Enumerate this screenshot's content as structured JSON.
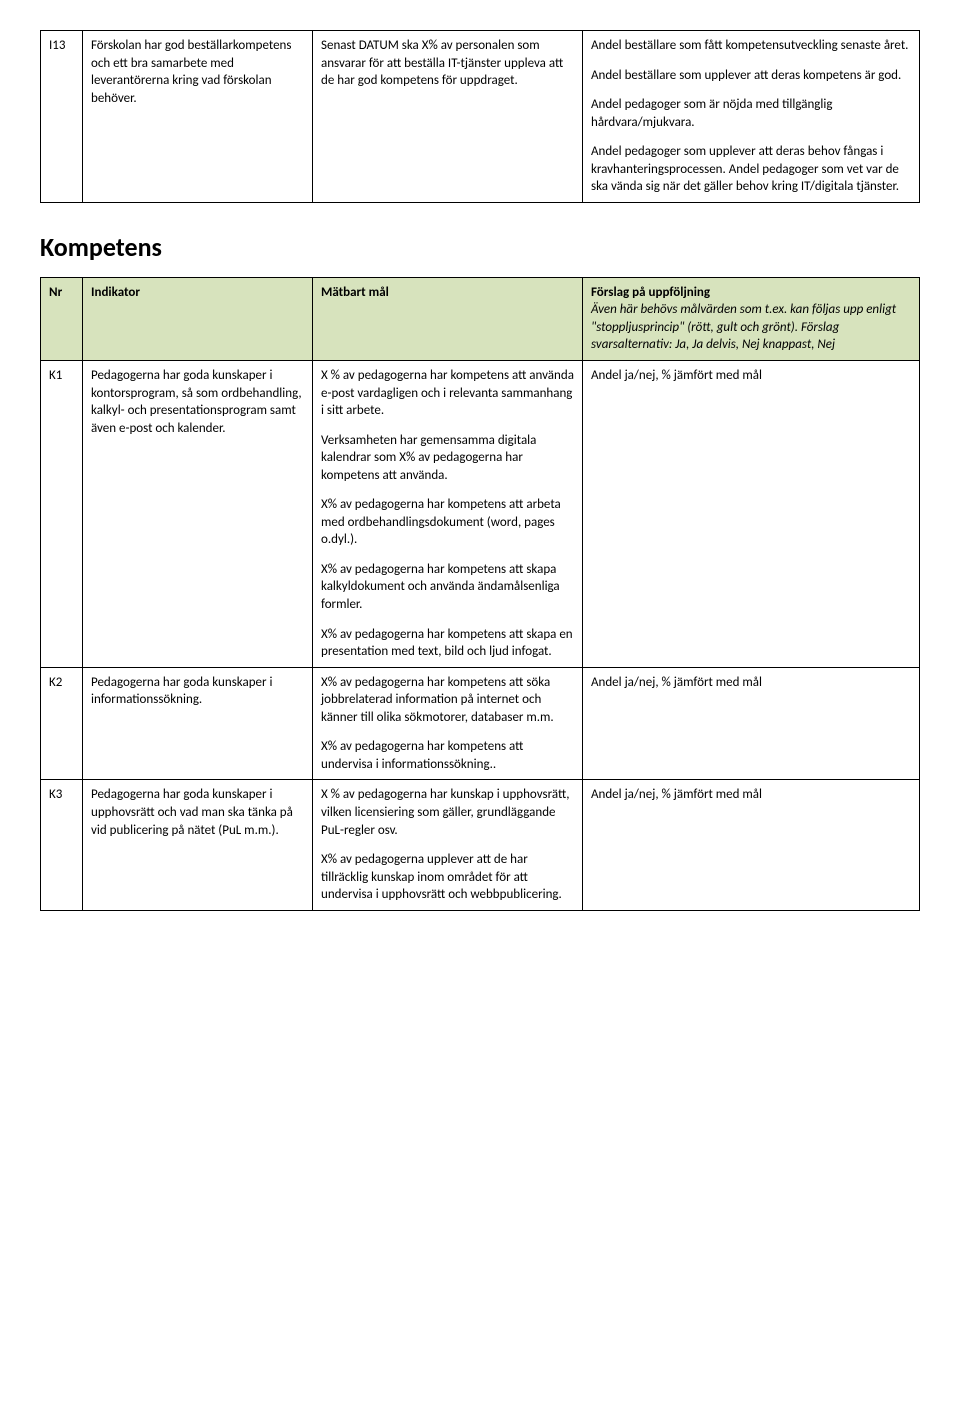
{
  "table1": {
    "rows": [
      {
        "nr": "I13",
        "indikator": "Förskolan har god beställarkompetens och ett bra samarbete med leverantörerna kring vad förskolan behöver.",
        "matbart": "Senast DATUM ska X% av personalen som ansvarar för att beställa IT-tjänster uppleva att de har god kompetens för uppdraget.",
        "uppfoljning": [
          "Andel beställare som fått kompetensutveckling senaste året.",
          "Andel beställare som upplever att deras kompetens är god.",
          "Andel pedagoger som är nöjda med tillgänglig hårdvara/mjukvara.",
          "Andel pedagoger som upplever att deras behov fångas i kravhanteringsprocessen. Andel pedagoger som vet var de ska vända sig när det gäller behov kring IT/digitala tjänster."
        ]
      }
    ]
  },
  "section_heading": "Kompetens",
  "table2": {
    "header": {
      "nr": "Nr",
      "indikator": "Indikator",
      "matbart": "Mätbart mål",
      "uppfoljning_bold": "Förslag på uppföljning",
      "uppfoljning_italic": "Även här behövs målvärden som t.ex. kan följas upp enligt \"stoppljusprincip\" (rött, gult och grönt). Förslag svarsalternativ: Ja, Ja delvis, Nej knappast, Nej"
    },
    "rows": [
      {
        "nr": "K1",
        "indikator": "Pedagogerna har goda kunskaper i kontorsprogram, så som ordbehandling, kalkyl- och presentationsprogram samt även e-post och kalender.",
        "matbart": [
          "X % av pedagogerna har kompetens att använda e-post vardagligen och i relevanta sammanhang i sitt arbete.",
          "Verksamheten har gemensamma digitala kalendrar som X% av pedagogerna har kompetens att använda.",
          "X% av pedagogerna har kompetens att arbeta med ordbehandlingsdokument (word, pages o.dyl.).",
          "X% av pedagogerna har kompetens att skapa kalkyldokument och använda ändamålsenliga formler.",
          "X% av pedagogerna har kompetens att skapa en presentation med text, bild och ljud infogat."
        ],
        "uppfoljning": "Andel ja/nej, % jämfört med mål"
      },
      {
        "nr": "K2",
        "indikator": "Pedagogerna har goda kunskaper i informationssökning.",
        "matbart": [
          "X% av pedagogerna har kompetens att söka jobbrelaterad information på internet och känner till olika sökmotorer, databaser m.m.",
          "X% av pedagogerna har kompetens att undervisa i informationssökning.."
        ],
        "uppfoljning": "Andel ja/nej, % jämfört med mål"
      },
      {
        "nr": "K3",
        "indikator": "Pedagogerna har goda kunskaper i upphovsrätt och vad man ska tänka på vid publicering på nätet (PuL m.m.).",
        "matbart": [
          "X % av pedagogerna har kunskap i upphovsrätt, vilken licensiering som gäller, grundläggande PuL-regler osv.",
          "X% av pedagogerna upplever att de har tillräcklig kunskap inom området för att undervisa i upphovsrätt och webbpublicering."
        ],
        "uppfoljning": "Andel ja/nej, % jämfört med mål"
      }
    ]
  }
}
